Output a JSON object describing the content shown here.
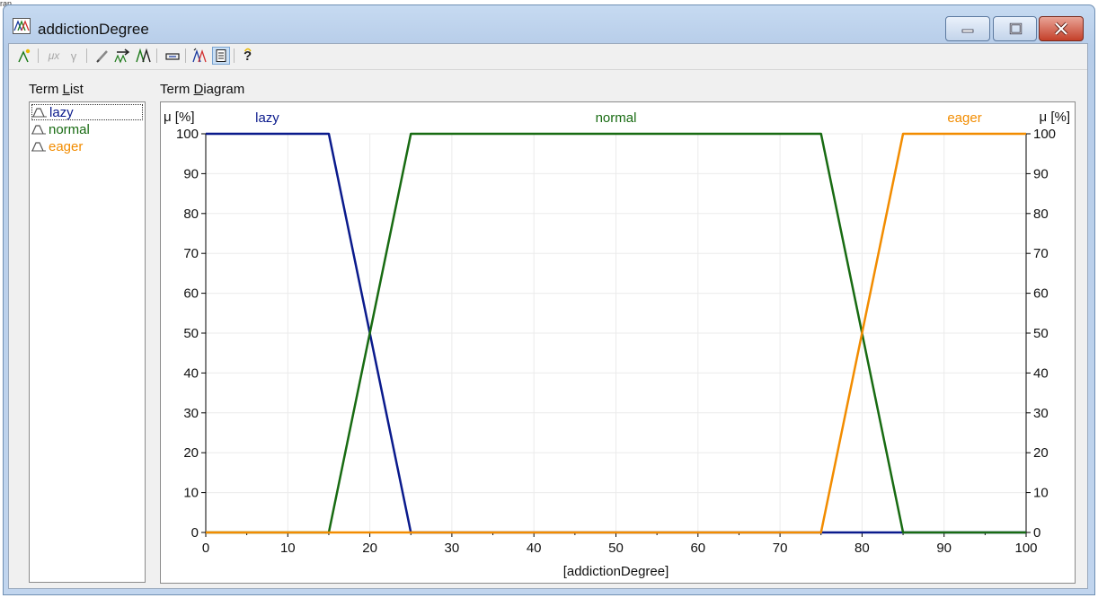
{
  "window": {
    "title": "addictionDegree",
    "background_fragment": "ran"
  },
  "toolbar": {
    "buttons": [
      {
        "icon": "new-term-icon",
        "enabled": true
      },
      {
        "icon": "mu-x-icon",
        "label": "μx",
        "enabled": false
      },
      {
        "icon": "gamma-icon",
        "label": "γ",
        "enabled": false
      },
      {
        "icon": "pencil-icon",
        "enabled": true
      },
      {
        "icon": "shift-terms-icon",
        "enabled": true
      },
      {
        "icon": "mirror-terms-icon",
        "enabled": true
      },
      {
        "icon": "range-icon",
        "enabled": true
      },
      {
        "icon": "wizard-icon",
        "enabled": true
      },
      {
        "icon": "properties-icon",
        "enabled": true,
        "active": true
      },
      {
        "icon": "help-icon",
        "enabled": true
      }
    ]
  },
  "term_list": {
    "label_pre": "Term ",
    "label_accel": "L",
    "label_post": "ist",
    "items": [
      {
        "name": "lazy",
        "color": "#0a1a8c",
        "selected": true
      },
      {
        "name": "normal",
        "color": "#186b12",
        "selected": false
      },
      {
        "name": "eager",
        "color": "#f28c00",
        "selected": false
      }
    ]
  },
  "term_diagram": {
    "label_pre": "Term ",
    "label_accel": "D",
    "label_post": "iagram"
  },
  "chart_data": {
    "type": "line",
    "xlabel": "[addictionDegree]",
    "ylabel_left": "μ [%]",
    "ylabel_right": "μ [%]",
    "xlim": [
      0,
      100
    ],
    "ylim": [
      0,
      100
    ],
    "x_ticks": [
      0,
      10,
      20,
      30,
      40,
      50,
      60,
      70,
      80,
      90,
      100
    ],
    "y_ticks": [
      0,
      10,
      20,
      30,
      40,
      50,
      60,
      70,
      80,
      90,
      100
    ],
    "grid": true,
    "series": [
      {
        "name": "lazy",
        "color": "#0a1a8c",
        "label_x": 7.5,
        "points": [
          [
            0,
            100
          ],
          [
            15,
            100
          ],
          [
            25,
            0
          ],
          [
            75,
            0
          ],
          [
            85,
            0
          ],
          [
            100,
            0
          ]
        ]
      },
      {
        "name": "normal",
        "color": "#186b12",
        "label_x": 50,
        "points": [
          [
            0,
            0
          ],
          [
            15,
            0
          ],
          [
            25,
            100
          ],
          [
            75,
            100
          ],
          [
            85,
            0
          ],
          [
            100,
            0
          ]
        ]
      },
      {
        "name": "eager",
        "color": "#f28c00",
        "label_x": 92.5,
        "points": [
          [
            0,
            0
          ],
          [
            75,
            0
          ],
          [
            85,
            100
          ],
          [
            100,
            100
          ]
        ]
      }
    ]
  }
}
